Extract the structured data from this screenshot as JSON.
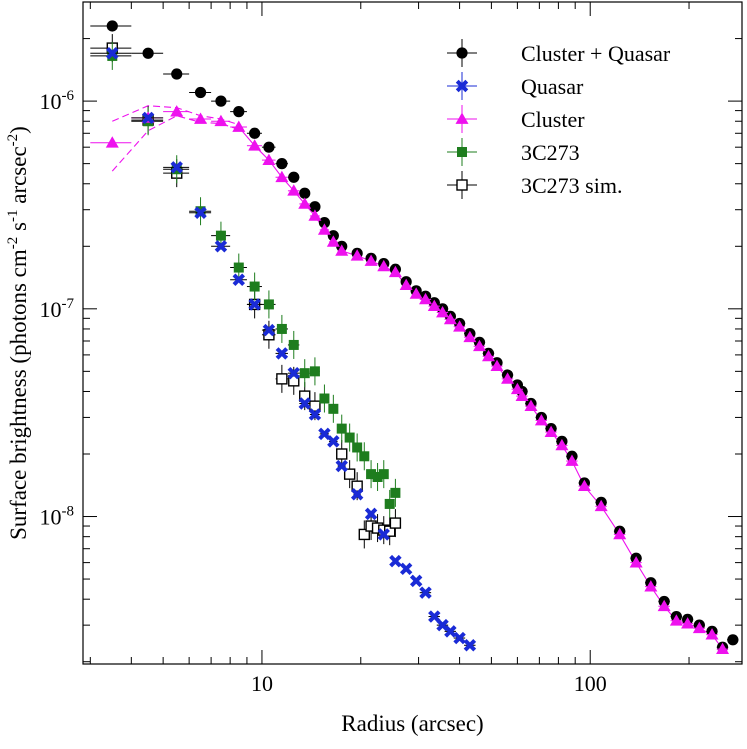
{
  "chart_data": {
    "type": "scatter",
    "xlabel": "Radius (arcsec)",
    "ylabel": "Surface brightness (photons cm",
    "ylabel_sup1": "-2",
    "ylabel_mid": " s",
    "ylabel_sup2": "-1",
    "ylabel_mid2": " arcsec",
    "ylabel_sup3": "-2",
    "ylabel_end": ")",
    "xscale": "log",
    "yscale": "log",
    "xlim": [
      2.85,
      290
    ],
    "ylim": [
      1.95e-09,
      3e-06
    ],
    "x_tick_labels": [
      {
        "value": 10,
        "label": "10"
      },
      {
        "value": 100,
        "label": "100"
      }
    ],
    "y_tick_labels": [
      {
        "value": 1e-06,
        "base": "10",
        "exp": "-6"
      },
      {
        "value": 1e-07,
        "base": "10",
        "exp": "-7"
      },
      {
        "value": 1e-08,
        "base": "10",
        "exp": "-8"
      }
    ],
    "legend_position": "top-right",
    "series": [
      {
        "name": "Cluster + Quasar",
        "marker": "circle",
        "color": "#000000",
        "points": [
          [
            3.5,
            2.3e-06
          ],
          [
            4.5,
            1.7e-06
          ],
          [
            5.5,
            1.35e-06
          ],
          [
            6.5,
            1.1e-06
          ],
          [
            7.5,
            1e-06
          ],
          [
            8.5,
            8.9e-07
          ],
          [
            9.5,
            7e-07
          ],
          [
            10.5,
            6e-07
          ],
          [
            11.5,
            5e-07
          ],
          [
            12.5,
            4.3e-07
          ],
          [
            13.5,
            3.6e-07
          ],
          [
            14.5,
            3.1e-07
          ],
          [
            15.5,
            2.6e-07
          ],
          [
            16.5,
            2.25e-07
          ],
          [
            17.5,
            2e-07
          ],
          [
            19.5,
            1.85e-07
          ],
          [
            21.5,
            1.75e-07
          ],
          [
            23.5,
            1.65e-07
          ],
          [
            25.5,
            1.55e-07
          ],
          [
            27.5,
            1.35e-07
          ],
          [
            29.5,
            1.22e-07
          ],
          [
            31.5,
            1.15e-07
          ],
          [
            33.5,
            1.07e-07
          ],
          [
            35.5,
            1e-07
          ],
          [
            37.5,
            9.2e-08
          ],
          [
            40.0,
            8.5e-08
          ],
          [
            43.0,
            7.6e-08
          ],
          [
            46.0,
            6.9e-08
          ],
          [
            49.0,
            6.1e-08
          ],
          [
            52.0,
            5.5e-08
          ],
          [
            56.0,
            4.8e-08
          ],
          [
            60.0,
            4.3e-08
          ],
          [
            62.0,
            4e-08
          ],
          [
            66.0,
            3.5e-08
          ],
          [
            71.0,
            3e-08
          ],
          [
            76.0,
            2.65e-08
          ],
          [
            82.0,
            2.3e-08
          ],
          [
            88.0,
            1.95e-08
          ],
          [
            96.0,
            1.45e-08
          ],
          [
            108.0,
            1.17e-08
          ],
          [
            123.0,
            8.5e-09
          ],
          [
            138.0,
            6.3e-09
          ],
          [
            153.0,
            4.8e-09
          ],
          [
            168.0,
            3.9e-09
          ],
          [
            183.0,
            3.3e-09
          ],
          [
            198.0,
            3.2e-09
          ],
          [
            215.0,
            3e-09
          ],
          [
            235.0,
            2.8e-09
          ],
          [
            253.0,
            2.35e-09
          ],
          [
            272.0,
            2.55e-09
          ]
        ]
      },
      {
        "name": "Quasar",
        "marker": "x",
        "color": "#1a2bd6",
        "points": [
          [
            3.5,
            1.7e-06
          ],
          [
            4.5,
            8.3e-07
          ],
          [
            5.5,
            4.8e-07
          ],
          [
            6.5,
            2.9e-07
          ],
          [
            7.5,
            2e-07
          ],
          [
            8.5,
            1.38e-07
          ],
          [
            9.5,
            1.05e-07
          ],
          [
            10.5,
            7.9e-08
          ],
          [
            11.5,
            6.1e-08
          ],
          [
            12.5,
            4.9e-08
          ],
          [
            13.5,
            3.5e-08
          ],
          [
            14.5,
            3.1e-08
          ],
          [
            15.5,
            2.5e-08
          ],
          [
            16.5,
            2.3e-08
          ],
          [
            17.5,
            1.75e-08
          ],
          [
            19.5,
            1.28e-08
          ],
          [
            21.5,
            1.03e-08
          ],
          [
            23.5,
            8.2e-09
          ],
          [
            25.5,
            6.1e-09
          ],
          [
            27.5,
            5.6e-09
          ],
          [
            29.5,
            4.9e-09
          ],
          [
            31.5,
            4.3e-09
          ],
          [
            33.5,
            3.3e-09
          ],
          [
            35.5,
            3e-09
          ],
          [
            37.5,
            2.8e-09
          ],
          [
            40.0,
            2.6e-09
          ],
          [
            43.0,
            2.4e-09
          ]
        ]
      },
      {
        "name": "Cluster",
        "marker": "triangle",
        "color": "#ee11ee",
        "points": [
          [
            3.5,
            6.3e-07
          ],
          [
            4.5,
            8.3e-07
          ],
          [
            5.5,
            8.9e-07
          ],
          [
            6.5,
            8.2e-07
          ],
          [
            7.5,
            8e-07
          ],
          [
            8.5,
            7.5e-07
          ],
          [
            9.5,
            6.1e-07
          ],
          [
            10.5,
            5.2e-07
          ],
          [
            11.5,
            4.3e-07
          ],
          [
            12.5,
            3.7e-07
          ],
          [
            13.5,
            3.2e-07
          ],
          [
            14.5,
            2.8e-07
          ],
          [
            15.5,
            2.4e-07
          ],
          [
            16.5,
            2.1e-07
          ],
          [
            17.5,
            1.9e-07
          ],
          [
            19.5,
            1.8e-07
          ],
          [
            21.5,
            1.7e-07
          ],
          [
            23.5,
            1.6e-07
          ],
          [
            25.5,
            1.5e-07
          ],
          [
            27.5,
            1.3e-07
          ],
          [
            29.5,
            1.18e-07
          ],
          [
            31.5,
            1.11e-07
          ],
          [
            33.5,
            1.03e-07
          ],
          [
            35.5,
            9.6e-08
          ],
          [
            37.5,
            8.9e-08
          ],
          [
            40.0,
            8.2e-08
          ],
          [
            43.0,
            7.3e-08
          ],
          [
            46.0,
            6.6e-08
          ],
          [
            49.0,
            5.9e-08
          ],
          [
            52.0,
            5.3e-08
          ],
          [
            56.0,
            4.6e-08
          ],
          [
            60.0,
            4.1e-08
          ],
          [
            62.0,
            3.8e-08
          ],
          [
            66.0,
            3.4e-08
          ],
          [
            71.0,
            2.9e-08
          ],
          [
            76.0,
            2.55e-08
          ],
          [
            82.0,
            2.2e-08
          ],
          [
            88.0,
            1.85e-08
          ],
          [
            96.0,
            1.4e-08
          ],
          [
            108.0,
            1.12e-08
          ],
          [
            123.0,
            8.2e-09
          ],
          [
            138.0,
            6e-09
          ],
          [
            153.0,
            4.6e-09
          ],
          [
            168.0,
            3.7e-09
          ],
          [
            183.0,
            3.15e-09
          ],
          [
            198.0,
            3.05e-09
          ],
          [
            215.0,
            2.9e-09
          ],
          [
            235.0,
            2.7e-09
          ],
          [
            253.0,
            2.3e-09
          ]
        ],
        "band_upper": [
          [
            3.5,
            8e-07
          ],
          [
            4.5,
            9.5e-07
          ],
          [
            5.5,
            9.3e-07
          ],
          [
            6.5,
            8.5e-07
          ],
          [
            7.5,
            8.2e-07
          ],
          [
            8.5,
            7.7e-07
          ]
        ],
        "band_lower": [
          [
            3.5,
            4.6e-07
          ],
          [
            4.5,
            7.2e-07
          ],
          [
            5.5,
            8.5e-07
          ],
          [
            6.5,
            7.9e-07
          ],
          [
            7.5,
            7.8e-07
          ],
          [
            8.5,
            7.3e-07
          ]
        ]
      },
      {
        "name": "3C273",
        "marker": "square-filled",
        "color": "#1e7d1e",
        "points": [
          [
            3.5,
            1.65e-06
          ],
          [
            4.5,
            8e-07
          ],
          [
            5.5,
            4.7e-07
          ],
          [
            6.5,
            2.95e-07
          ],
          [
            7.5,
            2.25e-07
          ],
          [
            8.5,
            1.58e-07
          ],
          [
            9.5,
            1.28e-07
          ],
          [
            10.5,
            1.05e-07
          ],
          [
            11.5,
            8e-08
          ],
          [
            12.5,
            6.7e-08
          ],
          [
            13.5,
            4.9e-08
          ],
          [
            14.5,
            5e-08
          ],
          [
            15.5,
            3.7e-08
          ],
          [
            16.5,
            3.3e-08
          ],
          [
            17.5,
            2.65e-08
          ],
          [
            18.5,
            2.4e-08
          ],
          [
            19.5,
            2.15e-08
          ],
          [
            20.5,
            1.95e-08
          ],
          [
            21.5,
            1.6e-08
          ],
          [
            22.5,
            1.55e-08
          ],
          [
            23.5,
            1.6e-08
          ],
          [
            24.5,
            1.15e-08
          ],
          [
            25.5,
            1.3e-08
          ]
        ]
      },
      {
        "name": "3C273 sim.",
        "marker": "square-open",
        "color": "#000000",
        "points": [
          [
            3.5,
            1.8e-06
          ],
          [
            4.5,
            8.1e-07
          ],
          [
            5.5,
            4.5e-07
          ],
          [
            9.5,
            1.05e-07
          ],
          [
            10.5,
            7.5e-08
          ],
          [
            11.5,
            4.6e-08
          ],
          [
            12.5,
            4.5e-08
          ],
          [
            13.5,
            3.8e-08
          ],
          [
            14.5,
            3.4e-08
          ],
          [
            17.5,
            2e-08
          ],
          [
            18.5,
            1.6e-08
          ],
          [
            19.5,
            1.4e-08
          ],
          [
            20.5,
            8.2e-09
          ],
          [
            21.5,
            9e-09
          ],
          [
            22.5,
            8.8e-09
          ],
          [
            23.5,
            8.6e-09
          ],
          [
            24.5,
            8.5e-09
          ],
          [
            25.5,
            9.3e-09
          ]
        ]
      }
    ]
  }
}
